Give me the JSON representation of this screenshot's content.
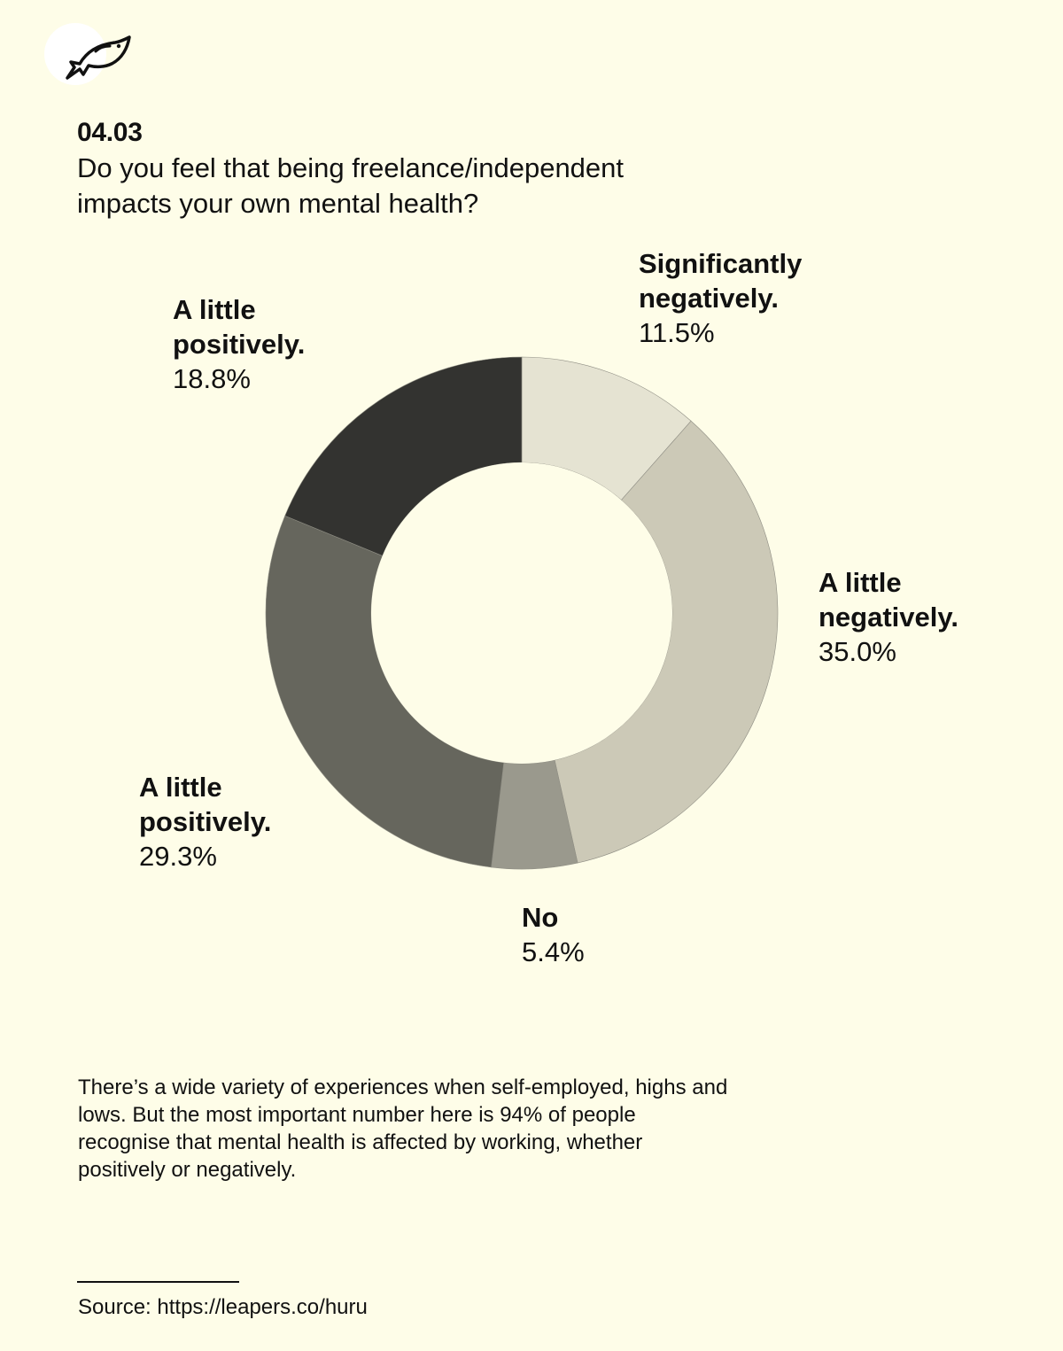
{
  "header": {
    "number": "04.03",
    "question": "Do you feel that being freelance/independent impacts your own mental health?"
  },
  "chart_data": {
    "type": "pie",
    "variant": "donut",
    "categories": [
      "Significantly negatively.",
      "A little negatively.",
      "No",
      "A little positively.",
      "A little positively."
    ],
    "values": [
      11.5,
      35.0,
      5.4,
      29.3,
      18.8
    ],
    "labels": [
      {
        "name": "Significantly negatively.",
        "pct": "11.5%"
      },
      {
        "name": "A little negatively.",
        "pct": "35.0%"
      },
      {
        "name": "No",
        "pct": "5.4%"
      },
      {
        "name": "A little positively.",
        "pct": "29.3%"
      },
      {
        "name": "A little positively.",
        "pct": "18.8%"
      }
    ],
    "colors": [
      "#e5e3d2",
      "#ccc9b7",
      "#9a998d",
      "#66665d",
      "#333330"
    ]
  },
  "note": "There’s a wide variety of experiences when self-employed, highs and lows. But the most important number here is 94% of people recognise that mental health is affected by working, whether positively or negatively.",
  "source": "Source: https://leapers.co/huru",
  "colors": {
    "background": "#fefde8",
    "text": "#111111"
  },
  "logo": {
    "icon": "fish-icon"
  }
}
